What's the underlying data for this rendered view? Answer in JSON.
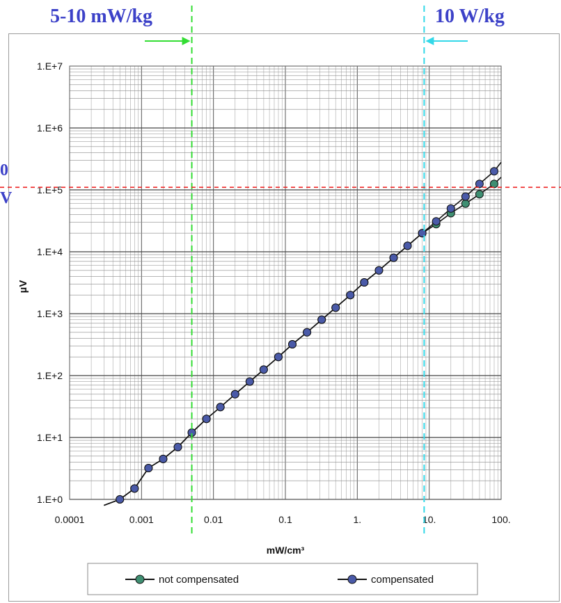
{
  "annotations": {
    "left_label": "5-10 mW/kg",
    "right_label": "10 W/kg",
    "edge_fragment_1": "0",
    "edge_fragment_2": "V",
    "colors": {
      "label_text": "#3c41c8",
      "left_marker": "#33dd33",
      "right_marker": "#33d8e8",
      "ref_line": "#ee2222"
    },
    "left_marker_x": 0.005,
    "right_marker_x": 8.5,
    "ref_line_y": 110000
  },
  "chart_data": {
    "type": "line",
    "xscale": "log",
    "yscale": "log",
    "xlim": [
      0.0001,
      100
    ],
    "ylim": [
      1,
      10000000
    ],
    "xlabel": "mW/cm³",
    "ylabel": "µV",
    "x_ticks": [
      0.0001,
      0.001,
      0.01,
      0.1,
      1,
      10,
      100
    ],
    "x_tick_labels": [
      "0.0001",
      "0.001",
      "0.01",
      "0.1",
      "1.",
      "10.",
      "100."
    ],
    "y_ticks": [
      1,
      10,
      100,
      1000,
      10000,
      100000,
      1000000,
      10000000
    ],
    "y_tick_labels": [
      "1.E+0",
      "1.E+1",
      "1.E+2",
      "1.E+3",
      "1.E+4",
      "1.E+5",
      "1.E+6",
      "1.E+7"
    ],
    "grid": true,
    "legend_position": "bottom",
    "series": [
      {
        "name": "not compensated",
        "color": "#3f8f72",
        "x": [
          0.0005,
          0.0008,
          0.00125,
          0.002,
          0.0032,
          0.005,
          0.008,
          0.0125,
          0.02,
          0.032,
          0.05,
          0.08,
          0.125,
          0.2,
          0.32,
          0.5,
          0.8,
          1.25,
          2,
          3.2,
          5,
          8,
          12.5,
          20,
          32,
          50,
          80
        ],
        "y": [
          1,
          1.5,
          3.2,
          4.5,
          7,
          12,
          20,
          31,
          50,
          80,
          125,
          200,
          320,
          500,
          800,
          1250,
          2000,
          3200,
          5000,
          8000,
          12500,
          20000,
          28000,
          42000,
          60000,
          85000,
          125000
        ],
        "line_start": [
          0.0003,
          0.8
        ],
        "line_end": [
          100,
          160000
        ]
      },
      {
        "name": "compensated",
        "color": "#4a5aa8",
        "x": [
          0.0005,
          0.0008,
          0.00125,
          0.002,
          0.0032,
          0.005,
          0.008,
          0.0125,
          0.02,
          0.032,
          0.05,
          0.08,
          0.125,
          0.2,
          0.32,
          0.5,
          0.8,
          1.25,
          2,
          3.2,
          5,
          8,
          12.5,
          20,
          32,
          50,
          80
        ],
        "y": [
          1,
          1.5,
          3.2,
          4.5,
          7,
          12,
          20,
          31,
          50,
          80,
          125,
          200,
          320,
          500,
          800,
          1250,
          2000,
          3200,
          5000,
          8000,
          12500,
          20000,
          31000,
          50000,
          78000,
          125000,
          200000
        ],
        "line_start": [
          0.0003,
          0.8
        ],
        "line_end": [
          100,
          280000
        ]
      }
    ]
  }
}
